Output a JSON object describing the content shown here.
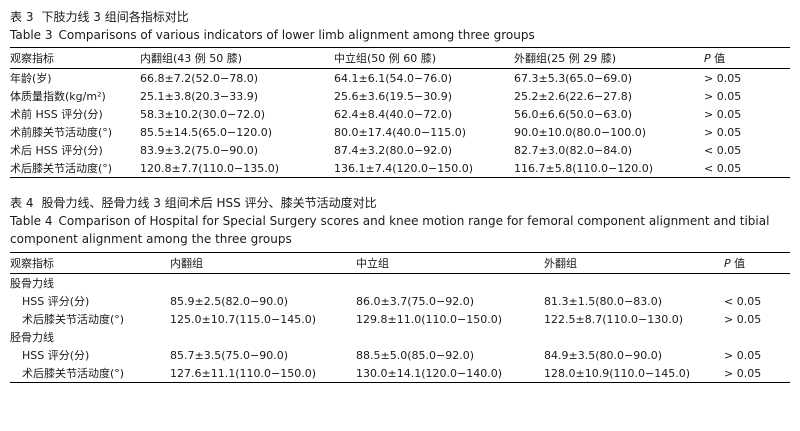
{
  "table3": {
    "caption_cn_label": "表 3",
    "caption_cn": "下肢力线 3 组间各指标对比",
    "caption_en_label": "Table 3",
    "caption_en": "Comparisons of various indicators of lower limb alignment among three groups",
    "headers": {
      "indicator": "观察指标",
      "varus": "内翻组(43 例 50 膝)",
      "neutral": "中立组(50 例 60 膝)",
      "valgus": "外翻组(25 例 29 膝)",
      "p_letter": "P",
      "p_suffix": " 值"
    },
    "rows": [
      {
        "label": "年龄(岁)",
        "varus": "66.8±7.2(52.0−78.0)",
        "neutral": "64.1±6.1(54.0−76.0)",
        "valgus": "67.3±5.3(65.0−69.0)",
        "p": "> 0.05"
      },
      {
        "label": "体质量指数(kg/m²)",
        "varus": "25.1±3.8(20.3−33.9)",
        "neutral": "25.6±3.6(19.5−30.9)",
        "valgus": "25.2±2.6(22.6−27.8)",
        "p": "> 0.05"
      },
      {
        "label": "术前 HSS 评分(分)",
        "varus": "58.3±10.2(30.0−72.0)",
        "neutral": "62.4±8.4(40.0−72.0)",
        "valgus": "56.0±6.6(50.0−63.0)",
        "p": "> 0.05"
      },
      {
        "label": "术前膝关节活动度(°)",
        "varus": "85.5±14.5(65.0−120.0)",
        "neutral": "80.0±17.4(40.0−115.0)",
        "valgus": "90.0±10.0(80.0−100.0)",
        "p": "> 0.05"
      },
      {
        "label": "术后 HSS 评分(分)",
        "varus": "83.9±3.2(75.0−90.0)",
        "neutral": "87.4±3.2(80.0−92.0)",
        "valgus": "82.7±3.0(82.0−84.0)",
        "p": "< 0.05"
      },
      {
        "label": "术后膝关节活动度(°)",
        "varus": "120.8±7.7(110.0−135.0)",
        "neutral": "136.1±7.4(120.0−150.0)",
        "valgus": "116.7±5.8(110.0−120.0)",
        "p": "< 0.05"
      }
    ]
  },
  "table4": {
    "caption_cn_label": "表 4",
    "caption_cn": "股骨力线、胫骨力线 3 组间术后 HSS 评分、膝关节活动度对比",
    "caption_en_label": "Table 4",
    "caption_en": "Comparison of Hospital for Special Surgery scores and knee motion range for femoral component alignment and tibial component alignment among the three groups",
    "headers": {
      "indicator": "观察指标",
      "varus": "内翻组",
      "neutral": "中立组",
      "valgus": "外翻组",
      "p_letter": "P",
      "p_suffix": " 值"
    },
    "sections": [
      {
        "title": "股骨力线",
        "rows": [
          {
            "label": "HSS 评分(分)",
            "varus": "85.9±2.5(82.0−90.0)",
            "neutral": "86.0±3.7(75.0−92.0)",
            "valgus": "81.3±1.5(80.0−83.0)",
            "p": "< 0.05"
          },
          {
            "label": "术后膝关节活动度(°)",
            "varus": "125.0±10.7(115.0−145.0)",
            "neutral": "129.8±11.0(110.0−150.0)",
            "valgus": "122.5±8.7(110.0−130.0)",
            "p": "> 0.05"
          }
        ]
      },
      {
        "title": "胫骨力线",
        "rows": [
          {
            "label": "HSS 评分(分)",
            "varus": "85.7±3.5(75.0−90.0)",
            "neutral": "88.5±5.0(85.0−92.0)",
            "valgus": "84.9±3.5(80.0−90.0)",
            "p": "> 0.05"
          },
          {
            "label": "术后膝关节活动度(°)",
            "varus": "127.6±11.1(110.0−150.0)",
            "neutral": "130.0±14.1(120.0−140.0)",
            "valgus": "128.0±10.9(110.0−145.0)",
            "p": "> 0.05"
          }
        ]
      }
    ]
  }
}
